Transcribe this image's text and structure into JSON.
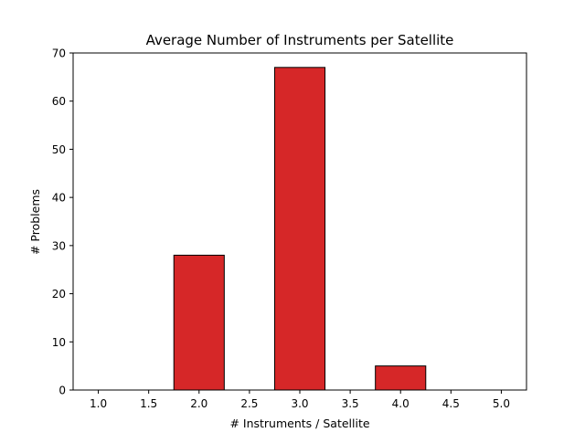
{
  "chart_data": {
    "type": "bar",
    "title": "Average Number of Instruments per Satellite",
    "xlabel": "# Instruments / Satellite",
    "ylabel": "# Problems",
    "xlim": [
      0.75,
      5.25
    ],
    "ylim": [
      0,
      70
    ],
    "x_ticks": [
      1.0,
      1.5,
      2.0,
      2.5,
      3.0,
      3.5,
      4.0,
      4.5,
      5.0
    ],
    "x_tick_labels": [
      "1.0",
      "1.5",
      "2.0",
      "2.5",
      "3.0",
      "3.5",
      "4.0",
      "4.5",
      "5.0"
    ],
    "y_ticks": [
      0,
      10,
      20,
      30,
      40,
      50,
      60,
      70
    ],
    "y_tick_labels": [
      "0",
      "10",
      "20",
      "30",
      "40",
      "50",
      "60",
      "70"
    ],
    "bin_width": 0.5,
    "bars": [
      {
        "x": 1.0,
        "value": 0
      },
      {
        "x": 1.5,
        "value": 0
      },
      {
        "x": 2.0,
        "value": 28
      },
      {
        "x": 2.5,
        "value": 0
      },
      {
        "x": 3.0,
        "value": 67
      },
      {
        "x": 3.5,
        "value": 0
      },
      {
        "x": 4.0,
        "value": 5
      },
      {
        "x": 4.5,
        "value": 0
      },
      {
        "x": 5.0,
        "value": 0
      }
    ],
    "bar_color": "#d62728",
    "edge_color": "#000000",
    "grid": false,
    "legend": "none"
  }
}
